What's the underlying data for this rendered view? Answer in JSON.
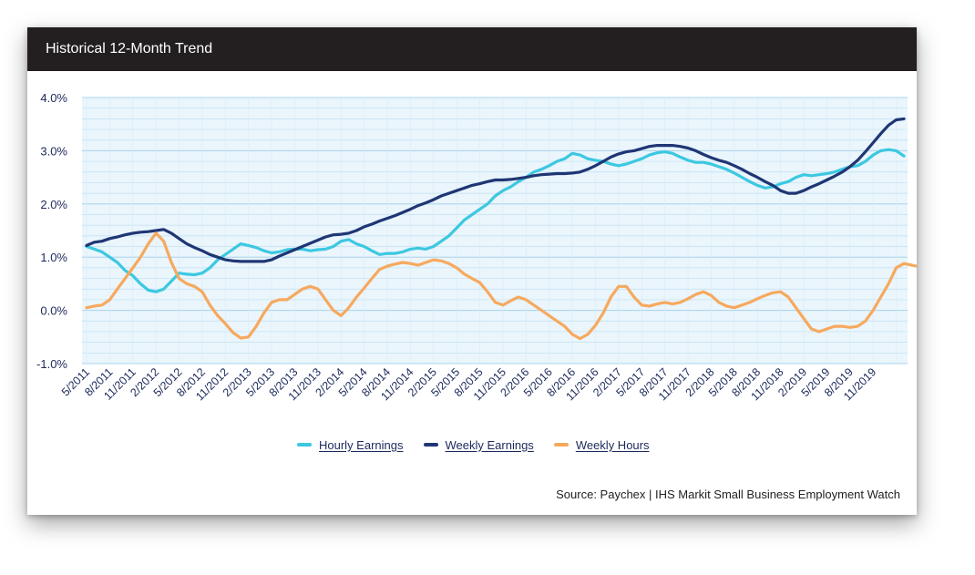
{
  "title": "Historical 12-Month Trend",
  "source": "Source: Paychex | IHS Markit Small Business Employment Watch",
  "colors": {
    "header_bg": "#231f20",
    "plot_bg": "#eaf5fc",
    "grid": "#bfe0f2",
    "axis_text": "#1d2a5b"
  },
  "chart_data": {
    "type": "line",
    "ylim": [
      -1.0,
      4.0
    ],
    "y_ticks": [
      "4.0%",
      "3.0%",
      "2.0%",
      "1.0%",
      "0.0%",
      "-1.0%"
    ],
    "y_tick_values": [
      4,
      3,
      2,
      1,
      0,
      -1
    ],
    "x_tick_labels": [
      "5/2011",
      "8/2011",
      "11/2011",
      "2/2012",
      "5/2012",
      "8/2012",
      "11/2012",
      "2/2013",
      "5/2013",
      "8/2013",
      "11/2013",
      "2/2014",
      "5/2014",
      "8/2014",
      "11/2014",
      "2/2015",
      "5/2015",
      "8/2015",
      "11/2015",
      "2/2016",
      "5/2016",
      "8/2016",
      "11/2016",
      "2/2017",
      "5/2017",
      "8/2017",
      "11/2017",
      "2/2018",
      "5/2018",
      "8/2018",
      "11/2018",
      "2/2019",
      "5/2019",
      "8/2019",
      "11/2019"
    ],
    "x_start": "5/2011",
    "x_end": "12/2019",
    "grid": true,
    "legend_position": "bottom",
    "series": [
      {
        "name": "Hourly Earnings",
        "color": "#3cc8e0",
        "values": [
          1.2,
          1.15,
          1.1,
          1.0,
          0.9,
          0.75,
          0.65,
          0.5,
          0.38,
          0.35,
          0.4,
          0.55,
          0.7,
          0.68,
          0.67,
          0.7,
          0.8,
          0.95,
          1.05,
          1.15,
          1.25,
          1.22,
          1.18,
          1.12,
          1.08,
          1.1,
          1.14,
          1.15,
          1.15,
          1.12,
          1.14,
          1.15,
          1.2,
          1.3,
          1.33,
          1.25,
          1.2,
          1.12,
          1.05,
          1.07,
          1.07,
          1.1,
          1.15,
          1.17,
          1.15,
          1.2,
          1.3,
          1.4,
          1.55,
          1.7,
          1.8,
          1.9,
          2.0,
          2.15,
          2.25,
          2.32,
          2.42,
          2.5,
          2.6,
          2.65,
          2.72,
          2.8,
          2.85,
          2.95,
          2.92,
          2.85,
          2.82,
          2.8,
          2.75,
          2.72,
          2.75,
          2.8,
          2.85,
          2.92,
          2.96,
          2.98,
          2.95,
          2.88,
          2.82,
          2.78,
          2.78,
          2.75,
          2.7,
          2.65,
          2.58,
          2.5,
          2.42,
          2.35,
          2.3,
          2.32,
          2.38,
          2.42,
          2.5,
          2.55,
          2.53,
          2.55,
          2.57,
          2.6,
          2.65,
          2.7,
          2.72,
          2.8,
          2.92,
          3.0,
          3.02,
          3.0,
          2.9
        ]
      },
      {
        "name": "Weekly Earnings",
        "color": "#1f3674",
        "values": [
          1.22,
          1.28,
          1.3,
          1.35,
          1.38,
          1.42,
          1.45,
          1.47,
          1.48,
          1.5,
          1.52,
          1.45,
          1.35,
          1.25,
          1.18,
          1.12,
          1.05,
          1.0,
          0.95,
          0.93,
          0.92,
          0.92,
          0.92,
          0.92,
          0.95,
          1.02,
          1.08,
          1.14,
          1.2,
          1.26,
          1.32,
          1.38,
          1.42,
          1.43,
          1.45,
          1.5,
          1.57,
          1.62,
          1.68,
          1.73,
          1.78,
          1.84,
          1.9,
          1.97,
          2.02,
          2.08,
          2.15,
          2.2,
          2.25,
          2.3,
          2.35,
          2.38,
          2.42,
          2.45,
          2.45,
          2.46,
          2.48,
          2.5,
          2.53,
          2.55,
          2.56,
          2.57,
          2.57,
          2.58,
          2.6,
          2.65,
          2.72,
          2.8,
          2.88,
          2.94,
          2.98,
          3.0,
          3.04,
          3.08,
          3.1,
          3.1,
          3.1,
          3.08,
          3.05,
          3.0,
          2.93,
          2.87,
          2.82,
          2.78,
          2.72,
          2.65,
          2.57,
          2.5,
          2.42,
          2.35,
          2.25,
          2.2,
          2.2,
          2.25,
          2.32,
          2.38,
          2.45,
          2.52,
          2.6,
          2.7,
          2.82,
          2.98,
          3.15,
          3.32,
          3.48,
          3.58,
          3.6
        ]
      },
      {
        "name": "Weekly Hours",
        "color": "#f6a95e",
        "values": [
          0.05,
          0.08,
          0.1,
          0.2,
          0.4,
          0.6,
          0.8,
          1.0,
          1.25,
          1.45,
          1.3,
          0.9,
          0.6,
          0.5,
          0.45,
          0.35,
          0.1,
          -0.1,
          -0.25,
          -0.42,
          -0.52,
          -0.5,
          -0.3,
          -0.05,
          0.15,
          0.2,
          0.2,
          0.3,
          0.4,
          0.45,
          0.4,
          0.2,
          0.0,
          -0.1,
          0.05,
          0.25,
          0.42,
          0.6,
          0.77,
          0.83,
          0.87,
          0.9,
          0.88,
          0.85,
          0.9,
          0.95,
          0.93,
          0.88,
          0.8,
          0.68,
          0.6,
          0.52,
          0.35,
          0.15,
          0.1,
          0.18,
          0.25,
          0.2,
          0.1,
          0.0,
          -0.1,
          -0.2,
          -0.3,
          -0.45,
          -0.53,
          -0.45,
          -0.28,
          -0.05,
          0.25,
          0.45,
          0.45,
          0.25,
          0.1,
          0.08,
          0.12,
          0.15,
          0.12,
          0.15,
          0.22,
          0.3,
          0.35,
          0.28,
          0.15,
          0.08,
          0.05,
          0.1,
          0.15,
          0.22,
          0.28,
          0.33,
          0.35,
          0.25,
          0.05,
          -0.15,
          -0.35,
          -0.4,
          -0.35,
          -0.3,
          -0.3,
          -0.32,
          -0.3,
          -0.2,
          0.0,
          0.25,
          0.5,
          0.8,
          0.88,
          0.85,
          0.82
        ]
      }
    ]
  }
}
